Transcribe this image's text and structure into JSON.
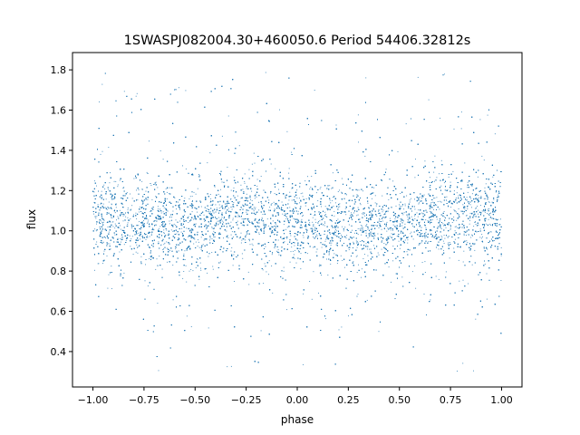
{
  "chart_data": {
    "type": "scatter",
    "title": "1SWASPJ082004.30+460050.6 Period 54406.32812s",
    "xlabel": "phase",
    "ylabel": "flux",
    "xlim": [
      -1.1,
      1.1
    ],
    "ylim": [
      0.224,
      1.886
    ],
    "xticks": [
      -1.0,
      -0.75,
      -0.5,
      -0.25,
      0.0,
      0.25,
      0.5,
      0.75,
      1.0
    ],
    "xtick_labels": [
      "−1.00",
      "−0.75",
      "−0.50",
      "−0.25",
      "0.00",
      "0.25",
      "0.50",
      "0.75",
      "1.00"
    ],
    "yticks": [
      0.4,
      0.6,
      0.8,
      1.0,
      1.2,
      1.4,
      1.6,
      1.8
    ],
    "ytick_labels": [
      "0.4",
      "0.6",
      "0.8",
      "1.0",
      "1.2",
      "1.4",
      "1.6",
      "1.8"
    ],
    "grid": false,
    "marker_color": "#1f77b4",
    "trend": {
      "phase": [
        -1.0,
        -0.75,
        -0.5,
        -0.3,
        0.0,
        0.25,
        0.5,
        0.7,
        1.0
      ],
      "flux_center": [
        1.05,
        1.04,
        1.02,
        1.08,
        1.04,
        1.04,
        1.02,
        1.08,
        1.05
      ],
      "flux_spread": 0.1
    },
    "flux_range_observed": [
      0.3,
      1.8
    ]
  }
}
